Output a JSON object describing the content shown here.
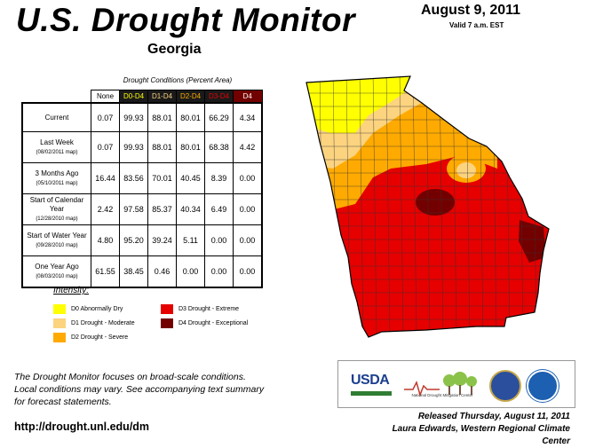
{
  "header": {
    "title": "U.S. Drought Monitor",
    "region": "Georgia",
    "date": "August 9, 2011",
    "valid": "Valid 7 a.m. EST"
  },
  "table": {
    "caption": "Drought Conditions (Percent Area)",
    "columns": [
      "None",
      "D0-D4",
      "D1-D4",
      "D2-D4",
      "D3-D4",
      "D4"
    ],
    "rows": [
      {
        "label": "Current",
        "sub": "",
        "values": [
          "0.07",
          "99.93",
          "88.01",
          "80.01",
          "66.29",
          "4.34"
        ]
      },
      {
        "label": "Last Week",
        "sub": "(08/02/2011 map)",
        "values": [
          "0.07",
          "99.93",
          "88.01",
          "80.01",
          "68.38",
          "4.42"
        ]
      },
      {
        "label": "3 Months Ago",
        "sub": "(05/10/2011 map)",
        "values": [
          "16.44",
          "83.56",
          "70.01",
          "40.45",
          "8.39",
          "0.00"
        ]
      },
      {
        "label": "Start of Calendar Year",
        "sub": "(12/28/2010 map)",
        "values": [
          "2.42",
          "97.58",
          "85.37",
          "40.34",
          "6.49",
          "0.00"
        ]
      },
      {
        "label": "Start of Water Year",
        "sub": "(09/28/2010 map)",
        "values": [
          "4.80",
          "95.20",
          "39.24",
          "5.11",
          "0.00",
          "0.00"
        ]
      },
      {
        "label": "One Year Ago",
        "sub": "(08/03/2010 map)",
        "values": [
          "61.55",
          "38.45",
          "0.46",
          "0.00",
          "0.00",
          "0.00"
        ]
      }
    ]
  },
  "legend": {
    "title": "Intensity:",
    "items": [
      {
        "label": "D0 Abnormally Dry",
        "color": "#ffff00"
      },
      {
        "label": "D1 Drought - Moderate",
        "color": "#fcd37f"
      },
      {
        "label": "D2 Drought - Severe",
        "color": "#ffaa00"
      },
      {
        "label": "D3 Drought - Extreme",
        "color": "#e60000"
      },
      {
        "label": "D4 Drought - Exceptional",
        "color": "#730000"
      }
    ]
  },
  "footer": {
    "note_lines": [
      "The Drought Monitor focuses on broad-scale conditions.",
      "Local conditions may vary. See accompanying text summary",
      "for forecast statements."
    ],
    "url": "http://drought.unl.edu/dm",
    "released": "Released Thursday, August 11, 2011",
    "author": "Laura Edwards, Western Regional Climate Center"
  },
  "logos": {
    "usda": "USDA",
    "ndmc": "National Drought Mitigation Center"
  },
  "map": {
    "colors": {
      "d0": "#ffff00",
      "d1": "#fcd37f",
      "d2": "#ffaa00",
      "d3": "#e60000",
      "d4": "#730000",
      "county_lines": "#333333"
    }
  }
}
